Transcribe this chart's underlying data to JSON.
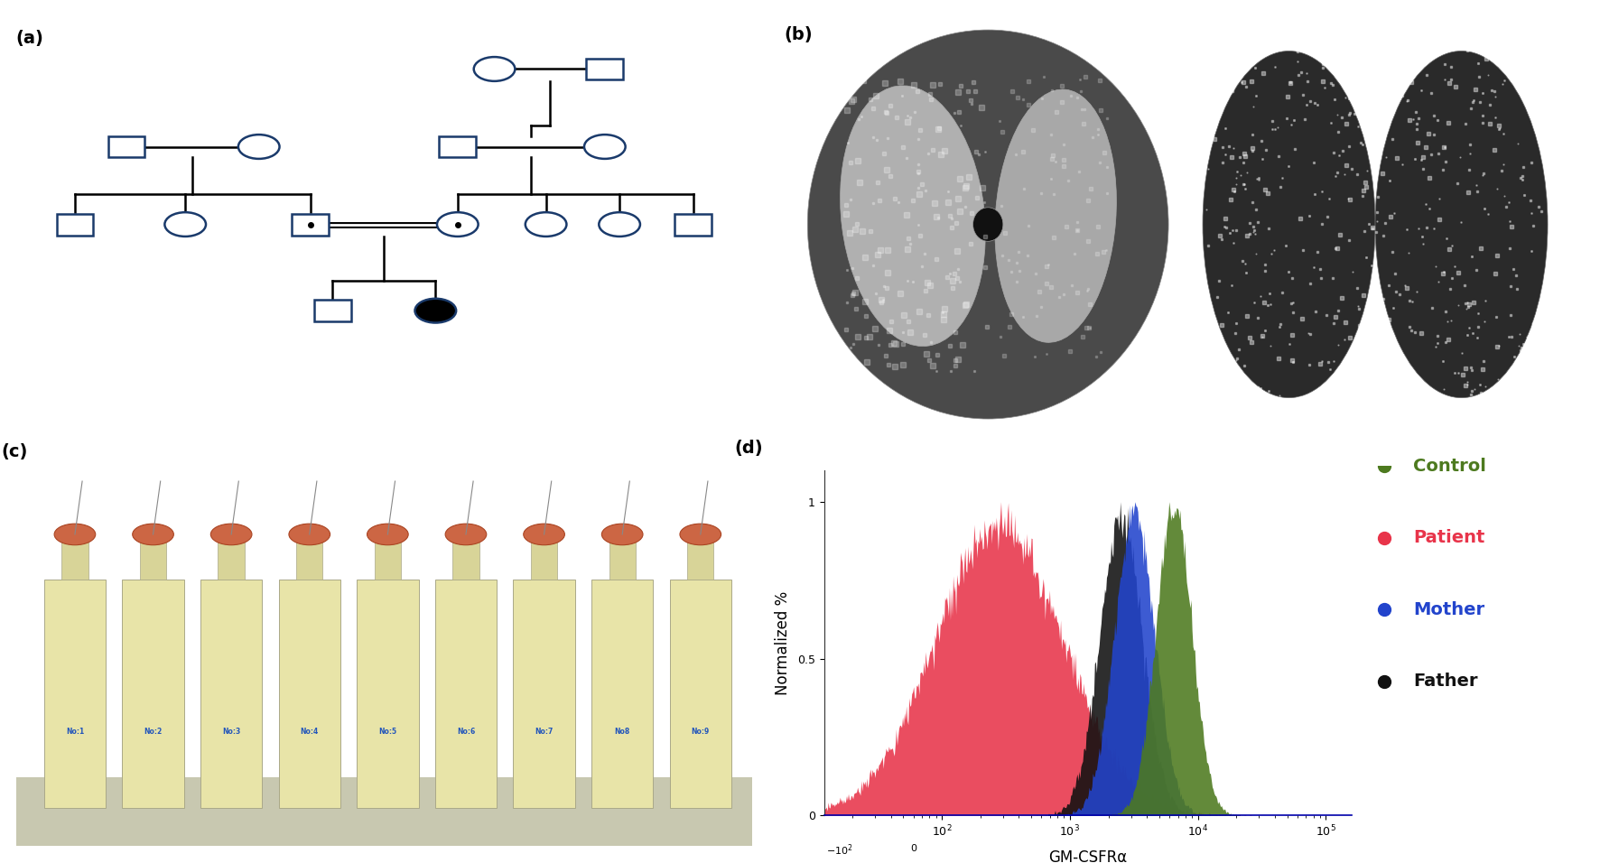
{
  "panel_labels": [
    "(a)",
    "(b)",
    "(c)",
    "(d)"
  ],
  "pedigree_color": "#1a3a6b",
  "legend_items": [
    {
      "label": "Control",
      "color": "#4d7a1f"
    },
    {
      "label": "Patient",
      "color": "#e8344a"
    },
    {
      "label": "Mother",
      "color": "#2244cc"
    },
    {
      "label": "Father",
      "color": "#111111"
    }
  ],
  "xlabel": "GM-CSFRα",
  "ylabel": "Normalized %",
  "background": "#ffffff"
}
